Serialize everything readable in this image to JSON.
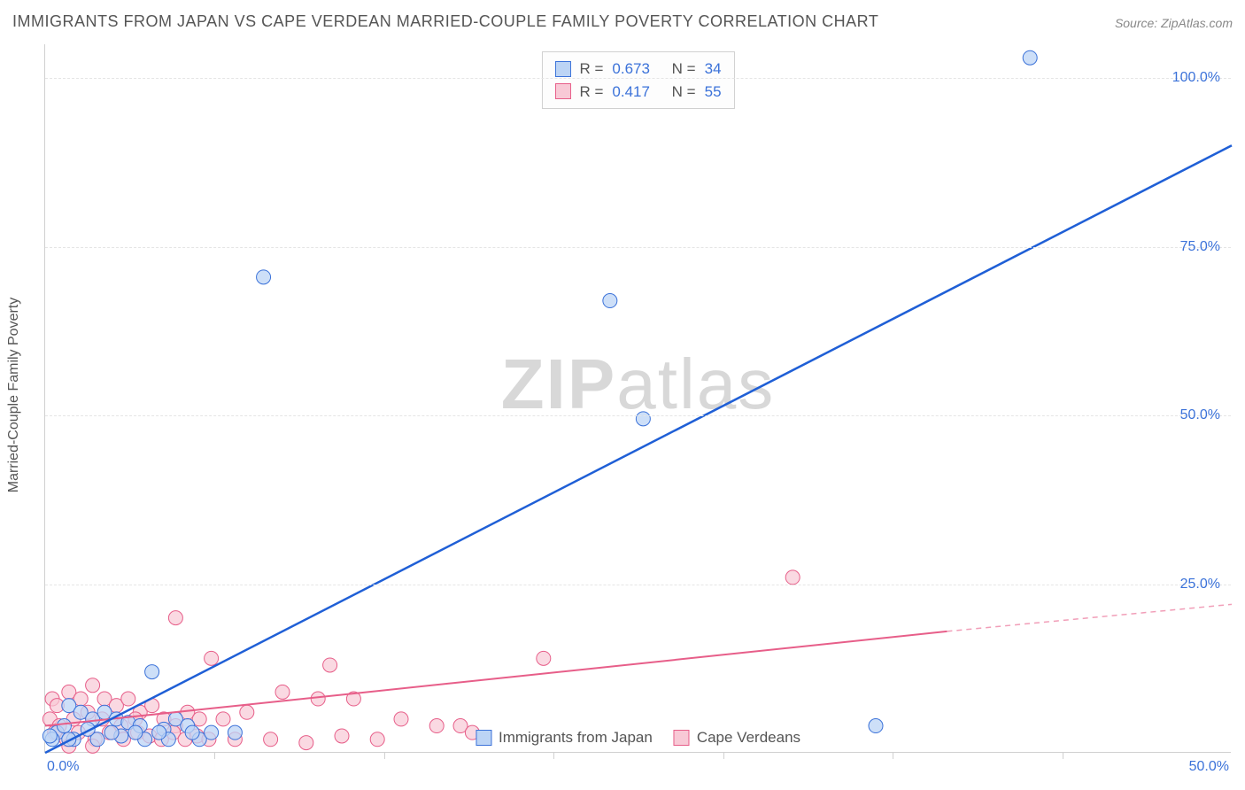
{
  "title": "IMMIGRANTS FROM JAPAN VS CAPE VERDEAN MARRIED-COUPLE FAMILY POVERTY CORRELATION CHART",
  "source_label": "Source:",
  "source_value": "ZipAtlas.com",
  "watermark_bold": "ZIP",
  "watermark_rest": "atlas",
  "y_axis_label": "Married-Couple Family Poverty",
  "chart": {
    "type": "scatter",
    "xlim": [
      0,
      50
    ],
    "ylim": [
      0,
      105
    ],
    "x_ticks": [
      0,
      50
    ],
    "x_tick_labels": [
      "0.0%",
      "50.0%"
    ],
    "x_minor_ticks": [
      7.14,
      14.29,
      21.43,
      28.57,
      35.71,
      42.86
    ],
    "y_ticks": [
      25,
      50,
      75,
      100
    ],
    "y_tick_labels": [
      "25.0%",
      "50.0%",
      "75.0%",
      "100.0%"
    ],
    "background_color": "#ffffff",
    "grid_color": "#e5e5e5",
    "axis_color": "#d0d0d0",
    "tick_label_color": "#3b72d9",
    "title_color": "#555555",
    "label_fontsize": 16,
    "title_fontsize": 18,
    "marker_radius": 8,
    "series": [
      {
        "name": "Immigrants from Japan",
        "color_fill": "#bcd4f5",
        "color_stroke": "#3b72d9",
        "R": "0.673",
        "N": "34",
        "points": [
          [
            41.5,
            103.0
          ],
          [
            9.2,
            70.5
          ],
          [
            23.8,
            67.0
          ],
          [
            25.2,
            49.5
          ],
          [
            35.0,
            4.0
          ],
          [
            8.0,
            3.0
          ],
          [
            1.0,
            7.0
          ],
          [
            1.5,
            6.0
          ],
          [
            2.0,
            5.0
          ],
          [
            2.5,
            6.0
          ],
          [
            3.0,
            5.0
          ],
          [
            3.5,
            4.5
          ],
          [
            4.0,
            4.0
          ],
          [
            4.5,
            12.0
          ],
          [
            5.0,
            3.5
          ],
          [
            5.5,
            5.0
          ],
          [
            6.0,
            4.0
          ],
          [
            6.5,
            2.0
          ],
          [
            7.0,
            3.0
          ],
          [
            0.5,
            3.0
          ],
          [
            1.2,
            2.0
          ],
          [
            2.2,
            2.0
          ],
          [
            0.8,
            4.0
          ],
          [
            3.2,
            2.5
          ],
          [
            4.2,
            2.0
          ],
          [
            5.2,
            2.0
          ],
          [
            0.3,
            2.0
          ],
          [
            1.8,
            3.5
          ],
          [
            2.8,
            3.0
          ],
          [
            4.8,
            3.0
          ],
          [
            6.2,
            3.0
          ],
          [
            3.8,
            3.0
          ],
          [
            0.2,
            2.5
          ],
          [
            1.0,
            2.0
          ]
        ],
        "trend": {
          "x1": 0,
          "y1": 0,
          "x2": 50,
          "y2": 90
        }
      },
      {
        "name": "Cape Verdeans",
        "color_fill": "#f8c9d6",
        "color_stroke": "#e75e89",
        "R": "0.417",
        "N": "55",
        "points": [
          [
            31.5,
            26.0
          ],
          [
            21.0,
            14.0
          ],
          [
            5.5,
            20.0
          ],
          [
            12.0,
            13.0
          ],
          [
            7.0,
            14.0
          ],
          [
            10.0,
            9.0
          ],
          [
            11.5,
            8.0
          ],
          [
            13.0,
            8.0
          ],
          [
            15.0,
            5.0
          ],
          [
            16.5,
            4.0
          ],
          [
            17.5,
            4.0
          ],
          [
            18.0,
            3.0
          ],
          [
            14.0,
            2.0
          ],
          [
            12.5,
            2.5
          ],
          [
            11.0,
            1.5
          ],
          [
            9.5,
            2.0
          ],
          [
            8.5,
            6.0
          ],
          [
            8.0,
            2.0
          ],
          [
            7.5,
            5.0
          ],
          [
            0.3,
            8.0
          ],
          [
            0.5,
            7.0
          ],
          [
            1.0,
            9.0
          ],
          [
            1.5,
            8.0
          ],
          [
            2.0,
            10.0
          ],
          [
            2.5,
            8.0
          ],
          [
            3.0,
            7.0
          ],
          [
            3.5,
            8.0
          ],
          [
            4.0,
            6.0
          ],
          [
            4.5,
            7.0
          ],
          [
            5.0,
            5.0
          ],
          [
            5.5,
            4.0
          ],
          [
            6.0,
            6.0
          ],
          [
            6.5,
            5.0
          ],
          [
            0.2,
            5.0
          ],
          [
            0.6,
            4.0
          ],
          [
            1.2,
            5.0
          ],
          [
            1.8,
            6.0
          ],
          [
            2.4,
            5.0
          ],
          [
            3.2,
            4.0
          ],
          [
            3.8,
            5.0
          ],
          [
            0.4,
            3.0
          ],
          [
            0.9,
            2.0
          ],
          [
            1.4,
            3.0
          ],
          [
            2.1,
            2.0
          ],
          [
            2.7,
            3.0
          ],
          [
            3.3,
            2.0
          ],
          [
            3.9,
            3.0
          ],
          [
            4.4,
            2.5
          ],
          [
            4.9,
            2.0
          ],
          [
            5.4,
            3.0
          ],
          [
            5.9,
            2.0
          ],
          [
            6.4,
            2.5
          ],
          [
            6.9,
            2.0
          ],
          [
            1.0,
            1.0
          ],
          [
            2.0,
            1.0
          ]
        ],
        "trend_solid": {
          "x1": 0,
          "y1": 4,
          "x2": 38,
          "y2": 18
        },
        "trend_dash": {
          "x1": 38,
          "y1": 18,
          "x2": 50,
          "y2": 22
        }
      }
    ]
  },
  "legend_top": {
    "rows": [
      {
        "swatch": "blue",
        "R": "0.673",
        "N": "34"
      },
      {
        "swatch": "pink",
        "R": "0.417",
        "N": "55"
      }
    ],
    "r_label": "R =",
    "n_label": "N ="
  },
  "legend_bottom": {
    "items": [
      {
        "swatch": "blue",
        "label": "Immigrants from Japan"
      },
      {
        "swatch": "pink",
        "label": "Cape Verdeans"
      }
    ]
  }
}
